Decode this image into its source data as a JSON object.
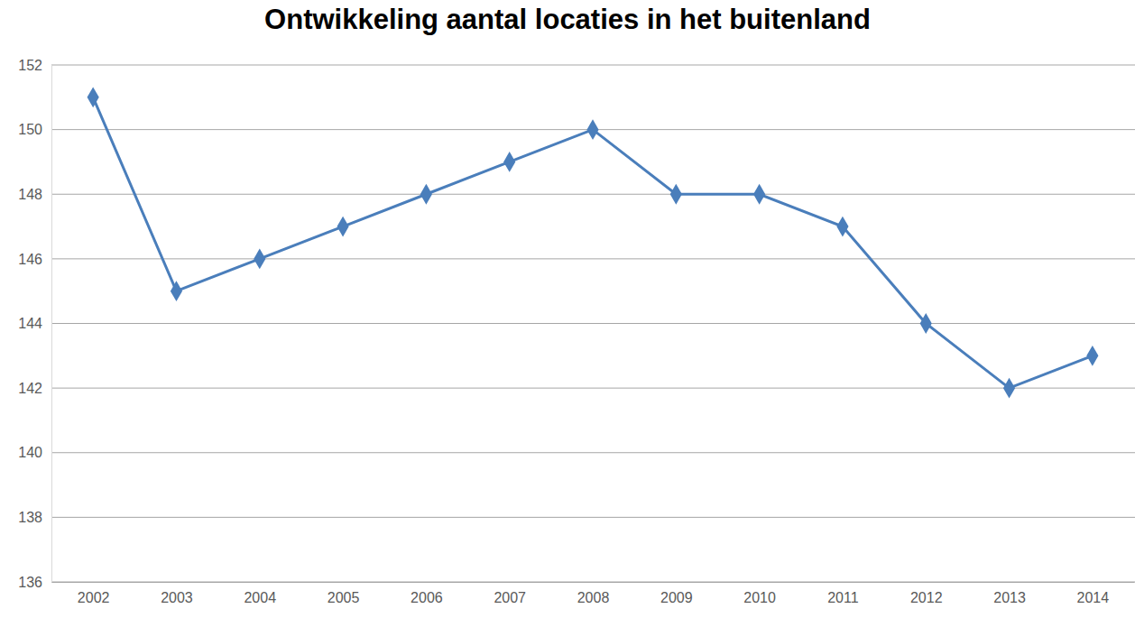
{
  "chart_data": {
    "type": "line",
    "title": "Ontwikkeling aantal locaties in het buitenland",
    "categories": [
      "2002",
      "2003",
      "2004",
      "2005",
      "2006",
      "2007",
      "2008",
      "2009",
      "2010",
      "2011",
      "2012",
      "2013",
      "2014"
    ],
    "values": [
      151,
      145,
      146,
      147,
      148,
      149,
      150,
      148,
      148,
      147,
      144,
      142,
      143
    ],
    "color": "#4a7ebb",
    "marker": "diamond",
    "line_style": "solid",
    "ylim": [
      136,
      152
    ],
    "yticks": [
      136,
      138,
      140,
      142,
      144,
      146,
      148,
      150,
      152
    ],
    "grid": true
  }
}
